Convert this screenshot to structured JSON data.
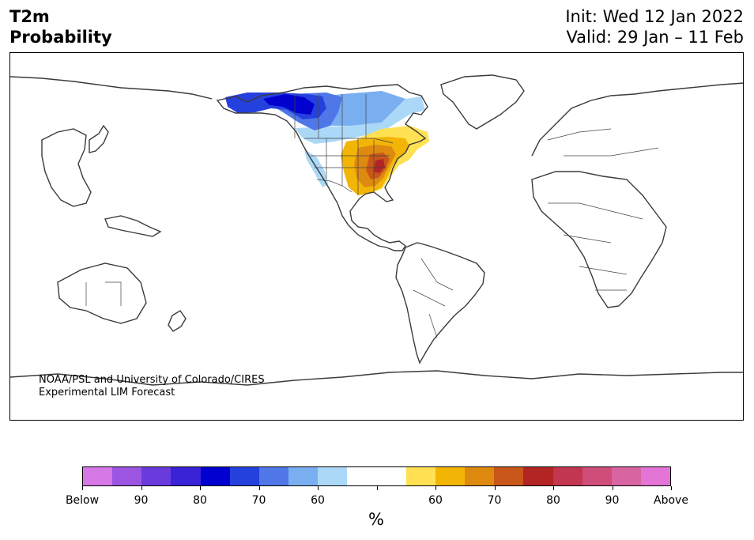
{
  "title": {
    "left_line1": "T2m",
    "left_line2": "Probability",
    "right_line1": "Init: Wed 12 Jan 2022",
    "right_line2": "Valid: 29 Jan – 11 Feb"
  },
  "credit": {
    "line1": "NOAA/PSL and University of Colorado/CIRES",
    "line2": "Experimental LIM Forecast"
  },
  "colorbar": {
    "colors": [
      "#d678e6",
      "#9b55e2",
      "#6a3bdc",
      "#3a22d6",
      "#0000cf",
      "#2541dd",
      "#4f77e8",
      "#79aef0",
      "#abd8f7",
      "#ffffff",
      "#ffffff",
      "#ffe153",
      "#f2b506",
      "#de8a10",
      "#c95719",
      "#b32424",
      "#c2374f",
      "#ce4d79",
      "#d864a2",
      "#e475d6"
    ],
    "labels": [
      "Below",
      "90",
      "80",
      "70",
      "60",
      "60",
      "70",
      "80",
      "90",
      "Above"
    ],
    "unit": "%"
  },
  "map": {
    "colors": {
      "coast": "#3a3a3a",
      "border": "#444444",
      "below_dark": "#0000cf",
      "below_mid": "#2541dd",
      "below_light": "#4f77e8",
      "below_pale": "#79aef0",
      "below_faint": "#abd8f7",
      "above_pale": "#ffe153",
      "above_light": "#f2b506",
      "above_mid": "#de8a10",
      "above_dark": "#c95719",
      "above_max": "#b32424"
    }
  }
}
